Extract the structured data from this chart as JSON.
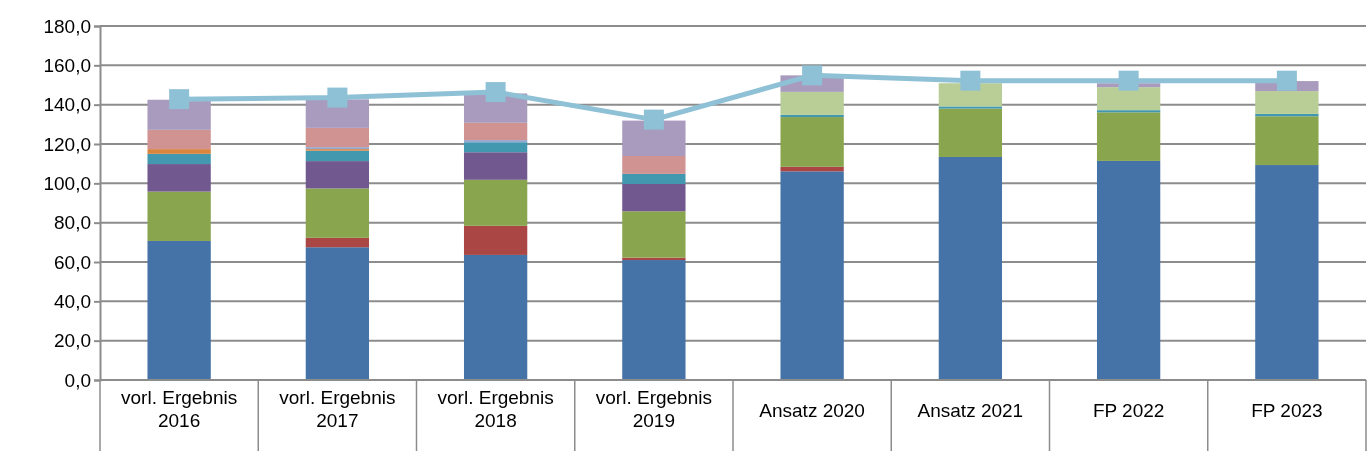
{
  "chart_data": {
    "type": "bar",
    "stacked": true,
    "grid": "y",
    "categories": [
      "vorl. Ergebnis 2016",
      "vorl. Ergebnis 2017",
      "vorl. Ergebnis 2018",
      "vorl. Ergebnis 2019",
      "Ansatz 2020",
      "Ansatz 2021",
      "FP 2022",
      "FP 2023"
    ],
    "ylim": [
      0,
      180
    ],
    "yticks": [
      {
        "value": 0,
        "label": "0,0"
      },
      {
        "value": 20,
        "label": "20,0"
      },
      {
        "value": 40,
        "label": "40,0"
      },
      {
        "value": 60,
        "label": "60,0"
      },
      {
        "value": 80,
        "label": "80,0"
      },
      {
        "value": 100,
        "label": "100,0"
      },
      {
        "value": 120,
        "label": "120,0"
      },
      {
        "value": 140,
        "label": "140,0"
      },
      {
        "value": 160,
        "label": "160,0"
      },
      {
        "value": 180,
        "label": "180,0"
      }
    ],
    "series": [
      {
        "color": "#4572a7",
        "values": [
          70.7,
          67.5,
          63.6,
          61.0,
          106.1,
          113.4,
          111.4,
          109.3
        ]
      },
      {
        "color": "#aa4643",
        "values": [
          0,
          4.8,
          14.8,
          1.2,
          2.3,
          0,
          0,
          0
        ]
      },
      {
        "color": "#89a54e",
        "values": [
          25.1,
          25.1,
          23.4,
          23.6,
          25.3,
          24.6,
          24.7,
          24.8
        ]
      },
      {
        "color": "#71588f",
        "values": [
          14.0,
          13.9,
          14.0,
          13.9,
          0,
          0,
          0,
          0
        ]
      },
      {
        "color": "#4198af",
        "values": [
          5.2,
          5.3,
          5.1,
          5.1,
          1.1,
          1.1,
          1.1,
          1.2
        ]
      },
      {
        "color": "#db843d",
        "values": [
          2.4,
          0.8,
          0,
          0,
          0,
          0,
          0,
          0
        ]
      },
      {
        "color": "#93a9cf",
        "values": [
          0,
          1.0,
          1.1,
          0,
          0,
          0,
          0,
          0
        ]
      },
      {
        "color": "#d19392",
        "values": [
          9.8,
          9.8,
          8.8,
          9.1,
          0,
          0,
          0,
          0
        ]
      },
      {
        "color": "#b9cd96",
        "values": [
          0,
          0,
          0,
          0,
          11.7,
          11.8,
          11.7,
          11.6
        ]
      },
      {
        "color": "#a99bbd",
        "values": [
          15.3,
          14.5,
          14.9,
          18.0,
          8.4,
          null,
          2.0,
          5.1
        ]
      },
      {
        "type": "line",
        "color": "#8fc1d6",
        "marker": "square",
        "line_style": "solid",
        "values": [
          142.8,
          143.6,
          146.4,
          132.4,
          154.9,
          152.2,
          152.2,
          152.2
        ]
      }
    ]
  }
}
